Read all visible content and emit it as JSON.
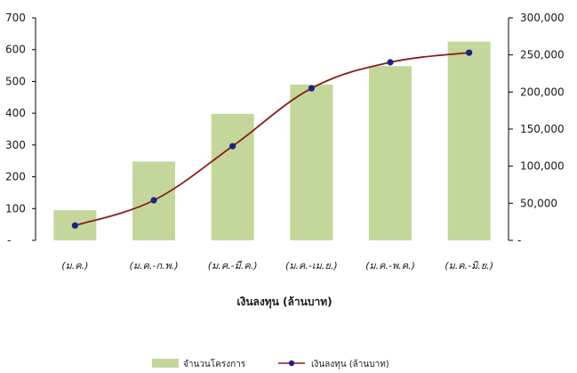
{
  "chart_data": {
    "type": "bar",
    "categories": [
      "(ม.ค.)",
      "(ม.ค.-ก.พ.)",
      "(ม.ค.-มี.ค.)",
      "(ม.ค.-เม.ย.)",
      "(ม.ค.-พ.ค.)",
      "(ม.ค.-มิ.ย.)"
    ],
    "xlabel": "เงินลงทุน (ล้านบาท)",
    "left_axis": {
      "ylim": [
        0,
        700
      ],
      "ticks": [
        "-",
        "100",
        "200",
        "300",
        "400",
        "500",
        "600",
        "700"
      ]
    },
    "right_axis": {
      "ylim": [
        0,
        300000
      ],
      "ticks": [
        "-",
        "50,000",
        "100,000",
        "150,000",
        "200,000",
        "250,000",
        "300,000"
      ]
    },
    "series": [
      {
        "name": "จำนวนโครงการ",
        "kind": "bar",
        "axis": "left",
        "color": "#c4d79b",
        "values": [
          95,
          248,
          398,
          490,
          548,
          625
        ]
      },
      {
        "name": "เงินลงทุน (ล้านบาท)",
        "kind": "line",
        "axis": "right",
        "color": "#8b1a1a",
        "marker_color": "#1a237e",
        "values": [
          20000,
          54000,
          127000,
          205000,
          240000,
          253000
        ]
      }
    ],
    "grid": false,
    "legend_position": "bottom"
  }
}
